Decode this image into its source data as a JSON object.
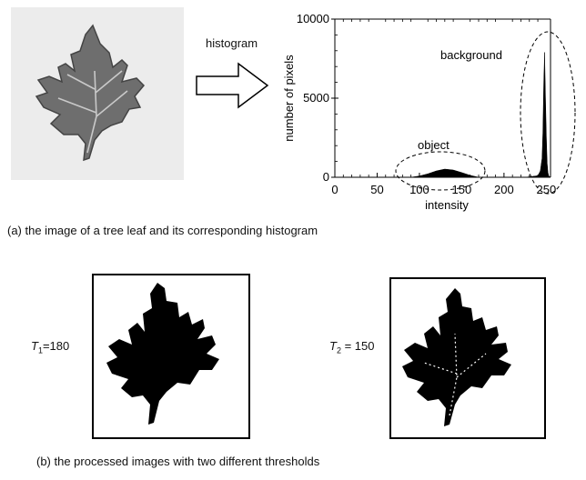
{
  "panel_a": {
    "arrow_label": "histogram",
    "caption": "(a) the image of a tree leaf and its corresponding histogram",
    "chart": {
      "ylabel": "number of pixels",
      "xlabel": "intensity",
      "x_ticks": [
        "0",
        "50",
        "100",
        "150",
        "200",
        "250"
      ],
      "y_ticks": [
        "0",
        "5000",
        "10000"
      ],
      "annotations": {
        "object": "object",
        "background": "background"
      }
    }
  },
  "panel_b": {
    "caption": "(b) the processed images with two different thresholds",
    "threshold1": {
      "symbol": "T",
      "sub": "1",
      "text": "=180"
    },
    "threshold2": {
      "symbol": "T",
      "sub": "2",
      "text": " = 150"
    }
  },
  "chart_data": {
    "type": "area",
    "xlabel": "intensity",
    "ylabel": "number of pixels",
    "xlim": [
      0,
      255
    ],
    "ylim": [
      0,
      10000
    ],
    "x_ticks": [
      0,
      50,
      100,
      150,
      200,
      250
    ],
    "y_ticks": [
      0,
      5000,
      10000
    ],
    "x": [
      0,
      90,
      100,
      110,
      120,
      130,
      140,
      150,
      160,
      170,
      225,
      240,
      243,
      245,
      246,
      247,
      248,
      249,
      250,
      251,
      252,
      253,
      255
    ],
    "values": [
      0,
      0,
      80,
      220,
      400,
      520,
      460,
      300,
      120,
      0,
      0,
      100,
      400,
      1200,
      2800,
      6000,
      7900,
      5200,
      2600,
      900,
      300,
      80,
      0
    ],
    "annotations": [
      "object",
      "background"
    ]
  }
}
